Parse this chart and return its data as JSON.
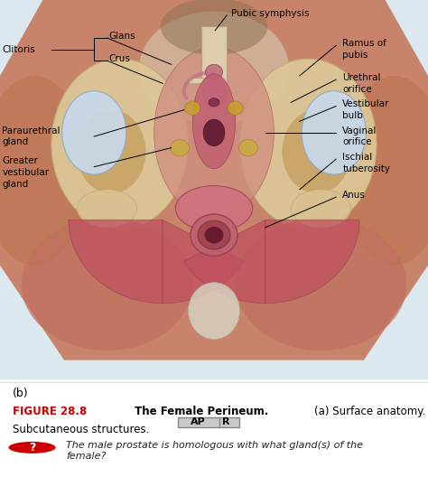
{
  "fig_width": 4.74,
  "fig_height": 5.38,
  "dpi": 100,
  "bg_color": "#ffffff",
  "image_bg_top": "#c8dce8",
  "label_b": "(b)",
  "figure_label": "FIGURE 28.8",
  "figure_label_color": "#cc0000",
  "figure_label_fontsize": 8.5,
  "figure_title": " The Female Perineum.",
  "figure_subtitle_plain": " (a) Surface anatomy. (b)\nSubcutaneous structures.   ",
  "ap_box_text": "AP",
  "r_box_text": "R",
  "question_text": "The male prostate is homologous with what gland(s) of the\nfemale?",
  "question_fontsize": 8,
  "question_color": "#222222",
  "question_icon_color": "#cc0000",
  "skin_color": "#c8846a",
  "skin_dark": "#b06450",
  "bone_color": "#ddc898",
  "bone_edge": "#c0a870",
  "bulb_color": "#b0c4d8",
  "bulb_edge": "#8090a8",
  "muscle_color": "#c05060",
  "muscle_light": "#d07080",
  "pink_tissue": "#d08090",
  "dark_red": "#803040",
  "gold_color": "#c8a040"
}
